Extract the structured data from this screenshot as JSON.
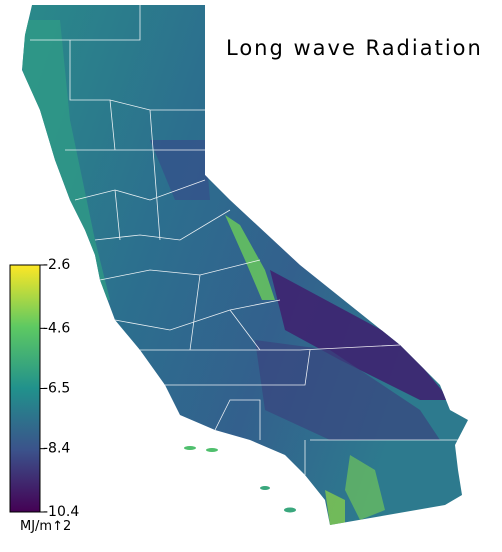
{
  "title": "Long wave Radiation",
  "colorbar": {
    "lim": [
      -10.4,
      -2.6
    ],
    "ticks": [
      -2.6,
      -4.6,
      -6.5,
      -8.4,
      -10.4
    ],
    "unit": "MJ/m↑2"
  }
}
